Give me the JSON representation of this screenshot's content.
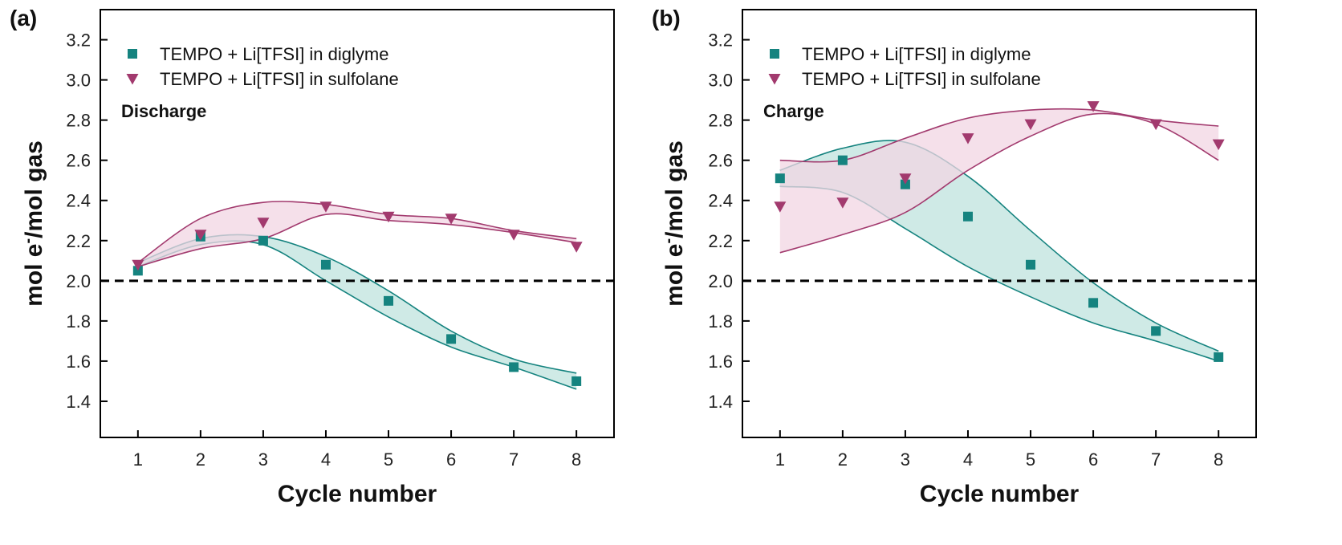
{
  "chart_data": [
    {
      "type": "scatter",
      "panel_label": "(a)",
      "annotation": "Discharge",
      "xlabel": "Cycle number",
      "ylabel_main": "mol e",
      "ylabel_sup": "-",
      "ylabel_rest": "/mol gas",
      "xlim": [
        0.4,
        8.6
      ],
      "ylim": [
        1.22,
        3.35
      ],
      "xticks": [
        "1",
        "2",
        "3",
        "4",
        "5",
        "6",
        "7",
        "8"
      ],
      "yticks": [
        "1.4",
        "1.6",
        "1.8",
        "2.0",
        "2.2",
        "2.4",
        "2.6",
        "2.8",
        "3.0",
        "3.2"
      ],
      "reference_line": 2.0,
      "legend_position": "top-left",
      "series": [
        {
          "name": "TEMPO + Li[TFSI] in diglyme",
          "marker": "square",
          "color": "#15837f",
          "fill": "#bfe3dd",
          "x": [
            1,
            2,
            3,
            4,
            5,
            6,
            7,
            8
          ],
          "y": [
            2.05,
            2.22,
            2.2,
            2.08,
            1.9,
            1.71,
            1.57,
            1.5
          ],
          "band_upper": [
            2.09,
            2.21,
            2.22,
            2.12,
            1.95,
            1.75,
            1.61,
            1.54
          ],
          "band_lower": [
            2.07,
            2.18,
            2.18,
            2.0,
            1.82,
            1.67,
            1.57,
            1.46
          ]
        },
        {
          "name": "TEMPO + Li[TFSI] in sulfolane",
          "marker": "triangle-down",
          "color": "#a23a6e",
          "fill": "#f2d6e3",
          "x": [
            1,
            2,
            3,
            4,
            5,
            6,
            7,
            8
          ],
          "y": [
            2.08,
            2.23,
            2.29,
            2.37,
            2.32,
            2.31,
            2.23,
            2.17
          ],
          "band_upper": [
            2.09,
            2.31,
            2.39,
            2.38,
            2.33,
            2.31,
            2.25,
            2.21
          ],
          "band_lower": [
            2.07,
            2.16,
            2.21,
            2.33,
            2.3,
            2.28,
            2.24,
            2.19
          ]
        }
      ]
    },
    {
      "type": "scatter",
      "panel_label": "(b)",
      "annotation": "Charge",
      "xlabel": "Cycle number",
      "ylabel_main": "mol e",
      "ylabel_sup": "-",
      "ylabel_rest": "/mol gas",
      "xlim": [
        0.4,
        8.6
      ],
      "ylim": [
        1.22,
        3.35
      ],
      "xticks": [
        "1",
        "2",
        "3",
        "4",
        "5",
        "6",
        "7",
        "8"
      ],
      "yticks": [
        "1.4",
        "1.6",
        "1.8",
        "2.0",
        "2.2",
        "2.4",
        "2.6",
        "2.8",
        "3.0",
        "3.2"
      ],
      "reference_line": 2.0,
      "legend_position": "top-left",
      "series": [
        {
          "name": "TEMPO + Li[TFSI] in diglyme",
          "marker": "square",
          "color": "#15837f",
          "fill": "#bfe3dd",
          "x": [
            1,
            2,
            3,
            4,
            5,
            6,
            7,
            8
          ],
          "y": [
            2.51,
            2.6,
            2.48,
            2.32,
            2.08,
            1.89,
            1.75,
            1.62
          ],
          "band_upper": [
            2.55,
            2.66,
            2.69,
            2.52,
            2.25,
            1.99,
            1.79,
            1.65
          ],
          "band_lower": [
            2.47,
            2.44,
            2.26,
            2.07,
            1.92,
            1.79,
            1.7,
            1.6
          ]
        },
        {
          "name": "TEMPO + Li[TFSI] in sulfolane",
          "marker": "triangle-down",
          "color": "#a23a6e",
          "fill": "#f2d6e3",
          "x": [
            1,
            2,
            3,
            4,
            5,
            6,
            7,
            8
          ],
          "y": [
            2.37,
            2.39,
            2.51,
            2.71,
            2.78,
            2.87,
            2.78,
            2.68
          ],
          "band_upper": [
            2.6,
            2.6,
            2.71,
            2.81,
            2.85,
            2.85,
            2.8,
            2.77
          ],
          "band_lower": [
            2.14,
            2.23,
            2.34,
            2.55,
            2.72,
            2.83,
            2.78,
            2.6
          ]
        }
      ]
    }
  ]
}
